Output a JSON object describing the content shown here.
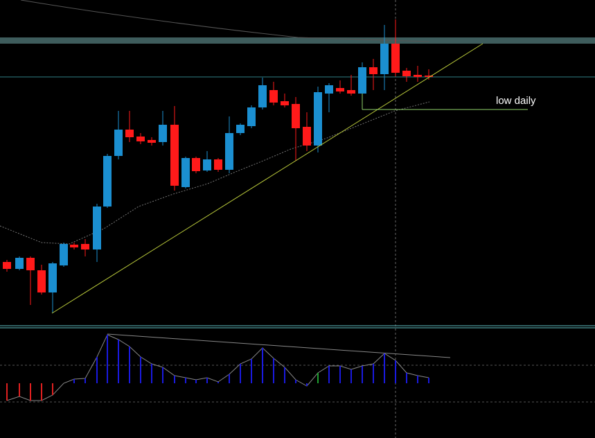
{
  "annotation": "low daily"
}
